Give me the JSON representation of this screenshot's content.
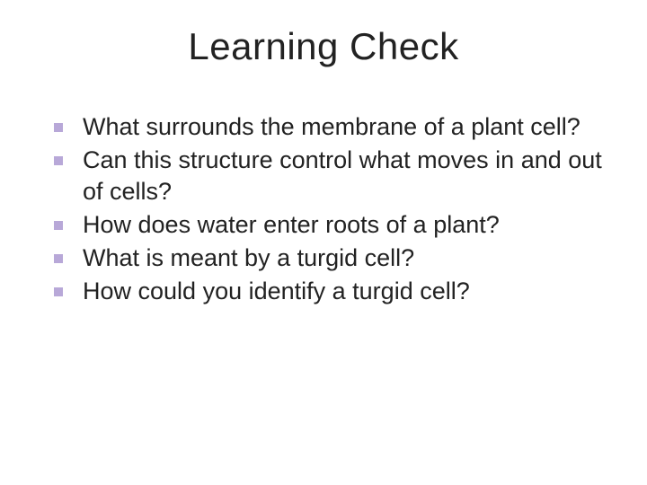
{
  "slide": {
    "title": "Learning Check",
    "title_fontsize": 42,
    "title_color": "#222222",
    "background_color": "#ffffff",
    "bullet_color": "#b8a8d8",
    "bullet_size": 10,
    "text_color": "#222222",
    "text_fontsize": 27,
    "bullets": [
      {
        "text": "What surrounds the membrane of a plant cell?"
      },
      {
        "text": "Can this structure control what moves in and out of cells?"
      },
      {
        "text": "How does water enter roots of a plant?"
      },
      {
        "text": "What is meant by a turgid cell?"
      },
      {
        "text": "How could you identify a turgid cell?"
      }
    ]
  }
}
